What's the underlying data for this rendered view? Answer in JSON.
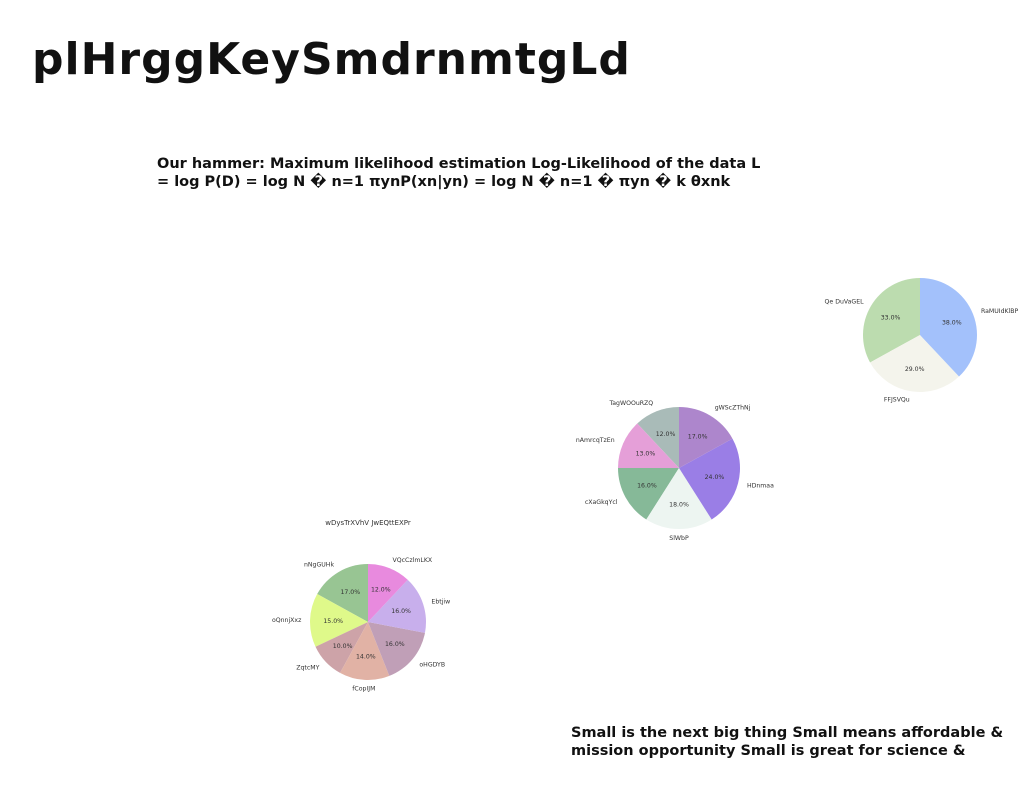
{
  "page": {
    "title": "plHrggKeySmdrnmtgLd",
    "text_1": "Our hammer: Maximum likelihood estimation Log-Likelihood of the data L = log P(D) = log N � n=1 πynP(xn|yn) = log N � n=1 � πyn � k θxnk",
    "text_2": "Small is the next big thing Small means affordable & mission opportunity Small is great for science &"
  },
  "chart_data": [
    {
      "type": "pie",
      "title": "",
      "categories": [
        "Qe DuVaGEL",
        "FFJSVQu",
        "RaMUIdKlBP"
      ],
      "values": [
        33.0,
        29.0,
        38.0
      ],
      "colors": [
        "#bcdcaf",
        "#f4f4ec",
        "#a3c1fb"
      ]
    },
    {
      "type": "pie",
      "title": "",
      "categories": [
        "TagWOOuRZQ",
        "nAmrcqTzEn",
        "cXaGkqYcl",
        "SlWbP",
        "HDnmaa",
        "gWScZThNj"
      ],
      "values": [
        12.0,
        13.0,
        16.0,
        18.0,
        24.0,
        17.0
      ],
      "colors": [
        "#a9bbb8",
        "#e59fd8",
        "#86b998",
        "#edf5f1",
        "#9a7ee6",
        "#ad86cc"
      ]
    },
    {
      "type": "pie",
      "title": "wDysTrXVhV JwEQttEXPr",
      "categories": [
        "nNgGUHk",
        "oQnnjXxz",
        "ZqtcMY",
        "fCopIJM",
        "oHGDYB",
        "Ebtjiw",
        "VQcCzlmLKX"
      ],
      "values": [
        17.0,
        15.0,
        10.0,
        14.0,
        16.0,
        16.0,
        12.0
      ],
      "colors": [
        "#98c593",
        "#dff98a",
        "#cda3a8",
        "#e1b2a5",
        "#c09fb7",
        "#c8afec",
        "#e88ade"
      ]
    }
  ]
}
